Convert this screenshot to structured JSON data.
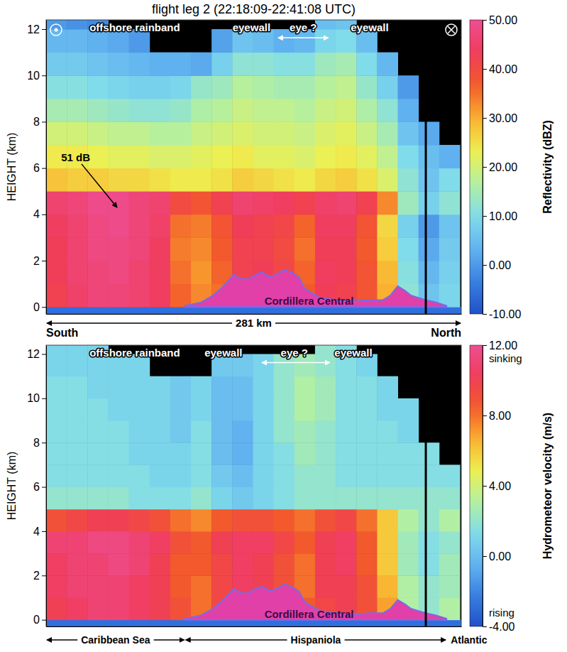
{
  "chart_data": [
    {
      "type": "heatmap",
      "title": "flight leg 2 (22:18:09-22:41:08 UTC)",
      "y_label": "HEIGHT (km)",
      "x_label": "281 km",
      "x_ends": [
        "South",
        "North"
      ],
      "xlim": [
        0,
        281
      ],
      "ylim": [
        -0.3,
        12.4
      ],
      "yticks": [
        0,
        2,
        4,
        6,
        8,
        10,
        12
      ],
      "tick_labels": "y",
      "cells": {
        "x": [
          7,
          21,
          35,
          49,
          63,
          77,
          91,
          105,
          119,
          133,
          147,
          161,
          175,
          189,
          203,
          217,
          231,
          245,
          259,
          273
        ],
        "y": [
          0.5,
          1.5,
          2.5,
          3.5,
          4.5,
          5.5,
          6.5,
          7.5,
          8.5,
          9.5,
          10.5,
          11.5,
          12.5
        ],
        "values": [
          [
            42,
            45,
            47,
            47,
            46,
            44,
            36,
            33,
            35,
            41,
            42,
            40,
            37,
            43,
            42,
            38,
            30,
            12,
            6,
            9
          ],
          [
            43,
            46,
            47,
            48,
            46,
            44,
            35,
            32,
            36,
            42,
            43,
            41,
            36,
            44,
            43,
            38,
            29,
            11,
            4,
            8
          ],
          [
            43,
            46,
            48,
            48,
            47,
            44,
            34,
            33,
            37,
            42,
            42,
            40,
            35,
            43,
            43,
            37,
            27,
            10,
            2,
            7
          ],
          [
            44,
            46,
            48,
            49,
            47,
            45,
            35,
            34,
            38,
            43,
            42,
            41,
            36,
            44,
            44,
            38,
            26,
            8,
            0,
            6
          ],
          [
            46,
            47,
            49,
            49,
            47,
            46,
            40,
            38,
            42,
            46,
            45,
            44,
            42,
            45,
            46,
            42,
            33,
            14,
            8,
            12
          ],
          [
            28,
            27,
            27,
            26,
            26,
            25,
            24,
            24,
            25,
            27,
            26,
            25,
            24,
            26,
            27,
            25,
            21,
            12,
            6,
            10
          ],
          [
            24,
            24,
            23,
            22,
            22,
            21,
            21,
            22,
            23,
            24,
            22,
            22,
            21,
            23,
            24,
            22,
            18,
            10,
            5,
            3
          ],
          [
            20,
            20,
            19,
            18,
            18,
            17,
            17,
            19,
            20,
            21,
            20,
            20,
            19,
            21,
            22,
            19,
            15,
            6,
            2,
            null
          ],
          [
            15,
            15,
            14,
            13,
            12,
            12,
            13,
            16,
            17,
            19,
            18,
            18,
            17,
            19,
            20,
            16,
            12,
            3,
            null,
            null
          ],
          [
            11,
            11,
            10,
            9,
            8,
            8,
            9,
            13,
            14,
            17,
            16,
            15,
            15,
            17,
            18,
            13,
            8,
            0,
            null,
            null
          ],
          [
            7,
            7,
            6,
            5,
            4,
            3,
            3,
            2,
            8,
            12,
            12,
            11,
            11,
            14,
            15,
            10,
            4,
            null,
            null,
            null
          ],
          [
            4,
            4,
            3,
            2,
            0,
            null,
            null,
            null,
            1,
            6,
            5,
            3,
            4,
            9,
            10,
            5,
            null,
            null,
            null,
            null
          ],
          [
            0,
            -1,
            -2,
            null,
            null,
            null,
            null,
            null,
            null,
            null,
            null,
            null,
            null,
            5,
            6,
            null,
            null,
            null,
            null,
            null
          ]
        ]
      },
      "colorbar": {
        "label": "Reflectivity (dBZ)",
        "range": [
          -10,
          50
        ],
        "ticks": [
          {
            "value": -10,
            "label": "-10.00"
          },
          {
            "value": 0,
            "label": "0.00"
          },
          {
            "value": 10,
            "label": "10.00"
          },
          {
            "value": 20,
            "label": "20.00"
          },
          {
            "value": 30,
            "label": "30.00"
          },
          {
            "value": 40,
            "label": "40.00"
          },
          {
            "value": 50,
            "label": "50.00"
          }
        ]
      },
      "terrain": {
        "x": [
          94,
          105,
          113,
          120,
          127,
          132,
          137,
          142,
          146,
          151,
          156,
          161,
          166,
          171,
          175,
          180,
          185,
          197,
          209,
          220,
          228,
          233,
          238,
          243,
          247,
          252,
          257,
          264,
          271
        ],
        "values": [
          0.05,
          0.2,
          0.5,
          0.9,
          1.4,
          1.2,
          1.2,
          1.4,
          1.5,
          1.3,
          1.4,
          1.6,
          1.5,
          1.3,
          0.8,
          0.6,
          0.4,
          0.3,
          0.25,
          0.3,
          0.3,
          0.5,
          0.9,
          0.7,
          0.5,
          0.4,
          0.3,
          0.2,
          0.05
        ],
        "color": "#e040a8"
      },
      "line_x": 257,
      "annotations": [
        {
          "text": "offshore rainband",
          "x": 60,
          "y": 11.9,
          "color": "#ffffff"
        },
        {
          "text": "eyewall",
          "x": 139,
          "y": 11.9,
          "color": "#ffffff"
        },
        {
          "text": "eye ?",
          "x": 174,
          "y": 11.9,
          "color": "#ffffff",
          "span": [
            157,
            191
          ]
        },
        {
          "text": "eyewall",
          "x": 219,
          "y": 11.9,
          "color": "#ffffff"
        },
        {
          "text": "51 dB",
          "x": 20,
          "y": 6.3,
          "color": "#000000",
          "points_to": [
            48,
            4.3
          ]
        },
        {
          "text": "Cordillera Central",
          "x": 178,
          "y": 0.1,
          "color": "#3c0a46"
        }
      ]
    },
    {
      "type": "heatmap",
      "y_label": "HEIGHT (km)",
      "xlim": [
        0,
        281
      ],
      "ylim": [
        -0.3,
        12.4
      ],
      "yticks": [
        0,
        2,
        4,
        6,
        8,
        10,
        12
      ],
      "tick_labels": "y",
      "cells": {
        "x": [
          7,
          21,
          35,
          49,
          63,
          77,
          91,
          105,
          119,
          133,
          147,
          161,
          175,
          189,
          203,
          217,
          231,
          245,
          259,
          273
        ],
        "y": [
          0.5,
          1.5,
          2.5,
          3.5,
          4.5,
          5.5,
          6.5,
          7.5,
          8.5,
          9.5,
          10.5,
          11.5,
          12.5
        ],
        "values": [
          [
            10,
            10.5,
            11,
            11,
            10.5,
            10,
            9,
            8,
            9.5,
            10,
            10,
            9,
            8.5,
            9.5,
            10,
            9,
            7,
            3,
            2,
            3
          ],
          [
            10.5,
            11,
            11,
            11,
            10.5,
            10,
            8.5,
            8,
            9.5,
            10.5,
            10,
            9,
            8,
            10,
            10,
            9,
            6.5,
            3,
            2,
            2.5
          ],
          [
            10.5,
            11,
            11,
            11.5,
            11,
            10,
            8.5,
            8.5,
            9.5,
            10.5,
            10,
            9,
            8,
            10,
            10.5,
            8.5,
            6,
            2.5,
            1.5,
            2.5
          ],
          [
            11,
            11,
            11.5,
            11.5,
            11,
            10.5,
            9,
            8.5,
            10,
            10.5,
            10.5,
            9.5,
            8.5,
            10,
            10.5,
            8.5,
            6,
            2.5,
            1.5,
            2
          ],
          [
            9,
            9.5,
            10,
            10,
            9.5,
            9,
            8,
            7.5,
            8.5,
            9,
            9,
            8.5,
            8,
            9,
            9.5,
            8,
            6,
            3,
            2,
            3
          ],
          [
            2,
            2,
            2,
            2,
            1.5,
            1.5,
            1.5,
            2,
            1,
            0.5,
            1,
            1.5,
            2,
            2,
            2,
            2,
            2,
            2,
            2,
            2
          ],
          [
            1.5,
            1.5,
            1.5,
            1.5,
            1.5,
            1,
            1,
            1.5,
            0.5,
            0,
            1,
            1.5,
            2,
            2,
            1.5,
            1.5,
            1.5,
            1.5,
            1.5,
            1.5
          ],
          [
            1.5,
            1.5,
            1.5,
            1.5,
            1,
            1,
            1,
            1.5,
            0,
            -0.5,
            1,
            1.5,
            2.5,
            2,
            1.5,
            1.5,
            1.5,
            1.5,
            1.5,
            null
          ],
          [
            1.5,
            1.5,
            1.5,
            1.5,
            1,
            1,
            0.5,
            1.5,
            0,
            -0.5,
            1,
            2,
            2.5,
            2,
            1.5,
            1.5,
            1.5,
            1,
            null,
            null
          ],
          [
            1.5,
            1.5,
            1.5,
            1,
            1,
            1,
            0.5,
            1,
            0,
            0,
            1,
            2,
            3,
            2.5,
            1.5,
            1.5,
            1,
            1,
            null,
            null
          ],
          [
            1.5,
            1.5,
            1,
            1,
            1,
            1,
            0.5,
            1,
            0,
            0,
            1,
            2,
            3,
            2.5,
            1.5,
            1.5,
            1,
            null,
            null,
            null
          ],
          [
            1,
            1,
            1,
            1,
            1,
            null,
            null,
            null,
            0.5,
            0.5,
            1,
            2,
            2.5,
            2,
            1.5,
            1,
            null,
            null,
            null,
            null
          ],
          [
            1,
            1,
            1,
            null,
            null,
            null,
            null,
            null,
            null,
            null,
            null,
            null,
            null,
            2,
            1.5,
            null,
            null,
            null,
            null,
            null
          ]
        ]
      },
      "colorbar": {
        "label": "Hydrometeor velocity (m/s)",
        "range": [
          -4,
          12
        ],
        "ticks": [
          {
            "value": -4,
            "label": "-4.00"
          },
          {
            "value": 0,
            "label": "0.00"
          },
          {
            "value": 4,
            "label": "4.00"
          },
          {
            "value": 8,
            "label": "8.00"
          },
          {
            "value": 12,
            "label": "12.00"
          }
        ],
        "notes": [
          {
            "value": 12,
            "text": "sinking"
          },
          {
            "value": -4,
            "text": "rising"
          }
        ]
      },
      "terrain": {
        "x": [
          94,
          105,
          113,
          120,
          127,
          132,
          137,
          142,
          146,
          151,
          156,
          161,
          166,
          171,
          175,
          180,
          185,
          197,
          209,
          220,
          228,
          233,
          238,
          243,
          247,
          252,
          257,
          264,
          271
        ],
        "values": [
          0.05,
          0.2,
          0.5,
          0.9,
          1.4,
          1.2,
          1.2,
          1.4,
          1.5,
          1.3,
          1.4,
          1.6,
          1.5,
          1.3,
          0.8,
          0.6,
          0.4,
          0.3,
          0.25,
          0.3,
          0.3,
          0.5,
          0.9,
          0.7,
          0.5,
          0.4,
          0.3,
          0.2,
          0.05
        ],
        "color": "#e040a8"
      },
      "line_x": 257,
      "annotations": [
        {
          "text": "offshore rainband",
          "x": 60,
          "y": 11.9,
          "color": "#ffffff"
        },
        {
          "text": "eyewall",
          "x": 120,
          "y": 11.9,
          "color": "#ffffff"
        },
        {
          "text": "eye ?",
          "x": 168,
          "y": 11.9,
          "color": "#ffffff",
          "span": [
            146,
            192
          ]
        },
        {
          "text": "eyewall",
          "x": 208,
          "y": 11.9,
          "color": "#ffffff"
        },
        {
          "text": "Cordillera Central",
          "x": 178,
          "y": 0.1,
          "color": "#3c0a46"
        }
      ],
      "regions": [
        {
          "name": "Caribbean Sea",
          "from": 0,
          "to": 94
        },
        {
          "name": "Hispaniola",
          "from": 94,
          "to": 271
        },
        {
          "name": "Atlantic",
          "from": 271,
          "to": 281
        }
      ]
    }
  ]
}
